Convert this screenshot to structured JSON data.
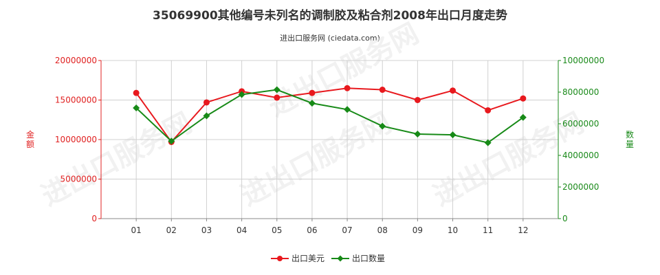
{
  "title": "35069900其他编号未列名的调制胶及粘合剂2008年出口月度走势",
  "subtitle": "进出口服务网 (ciedata.com)",
  "watermark": "进出口服务网",
  "chart_data": {
    "type": "line",
    "categories": [
      "01",
      "02",
      "03",
      "04",
      "05",
      "06",
      "07",
      "08",
      "09",
      "10",
      "11",
      "12"
    ],
    "left_axis": {
      "label": "金额",
      "ticks": [
        "0",
        "5000000",
        "10000000",
        "15000000",
        "20000000"
      ],
      "ylim": [
        0,
        20000000
      ]
    },
    "right_axis": {
      "label": "数量",
      "ticks": [
        "0",
        "2000000",
        "4000000",
        "6000000",
        "8000000",
        "10000000"
      ],
      "ylim": [
        0,
        10000000
      ]
    },
    "series": [
      {
        "name": "出口美元",
        "axis": "left",
        "color": "#e8191e",
        "values": [
          15900000,
          9700000,
          14700000,
          16100000,
          15300000,
          15900000,
          16500000,
          16300000,
          15000000,
          16200000,
          13700000,
          15200000
        ]
      },
      {
        "name": "出口数量",
        "axis": "right",
        "color": "#178a17",
        "values": [
          7000000,
          4900000,
          6500000,
          7850000,
          8150000,
          7300000,
          6900000,
          5850000,
          5350000,
          5300000,
          4800000,
          6400000
        ]
      }
    ],
    "grid": true,
    "legend": "bottom-center"
  }
}
